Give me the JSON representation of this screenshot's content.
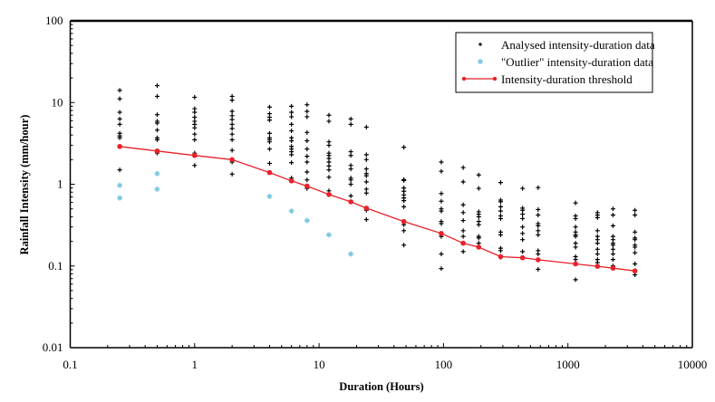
{
  "chart_data": {
    "type": "scatter",
    "title": "",
    "xlabel": "Duration (Hours)",
    "ylabel": "Rainfall Intensity (mm/hour)",
    "xscale": "log",
    "yscale": "log",
    "xlim": [
      0.1,
      10000
    ],
    "ylim": [
      0.01,
      100
    ],
    "x_ticks": [
      "0.1",
      "1",
      "10",
      "100",
      "1000",
      "10000"
    ],
    "y_ticks": [
      "0.01",
      "0.1",
      "1",
      "10",
      "100"
    ],
    "grid": false,
    "legend_position": "top-right",
    "series": [
      {
        "name": "Analysed intensity-duration data",
        "marker": "plus",
        "color": "#000000",
        "groups": [
          {
            "x": 0.25,
            "y": [
              14.1,
              11.1,
              7.6,
              6.3,
              5.4,
              4.2,
              3.9,
              3.7,
              1.5
            ]
          },
          {
            "x": 0.5,
            "y": [
              16.1,
              11.9,
              7.1,
              5.9,
              5.6,
              4.6,
              3.7,
              3.5,
              2.4
            ]
          },
          {
            "x": 1,
            "y": [
              11.6,
              8.4,
              7.6,
              6.6,
              5.9,
              5.4,
              4.9,
              4.1,
              3.5,
              2.4,
              1.7
            ]
          },
          {
            "x": 2,
            "y": [
              11.9,
              10.7,
              7.8,
              6.9,
              6.2,
              5.4,
              4.8,
              4.1,
              3.5,
              2.6,
              1.87,
              1.33
            ]
          },
          {
            "x": 4,
            "y": [
              8.8,
              7.3,
              6.6,
              6.1,
              4.2,
              3.7,
              3.5,
              3.3,
              2.7,
              1.8
            ]
          },
          {
            "x": 6,
            "y": [
              9.0,
              7.6,
              6.7,
              5.4,
              4.5,
              3.7,
              3.4,
              2.9,
              2.7,
              2.5,
              2.3,
              1.84,
              1.19
            ]
          },
          {
            "x": 8,
            "y": [
              9.4,
              7.8,
              6.7,
              4.3,
              3.4,
              2.7,
              2.2,
              1.87,
              1.41,
              1.13,
              0.89
            ]
          },
          {
            "x": 12,
            "y": [
              7.0,
              5.9,
              3.3,
              3.0,
              2.4,
              2.25,
              2.07,
              1.87,
              1.67,
              1.5,
              1.22,
              0.83
            ]
          },
          {
            "x": 18,
            "y": [
              6.3,
              5.4,
              2.5,
              2.25,
              1.7,
              1.54,
              1.19,
              1.13,
              1.0,
              0.72
            ]
          },
          {
            "x": 24,
            "y": [
              5.0,
              2.3,
              2.0,
              1.54,
              1.35,
              1.27,
              1.07,
              0.87,
              0.78,
              0.48,
              0.37
            ]
          },
          {
            "x": 48,
            "y": [
              2.84,
              1.14,
              1.11,
              0.9,
              0.82,
              0.74,
              0.68,
              0.63,
              0.53,
              0.32,
              0.27,
              0.18
            ]
          },
          {
            "x": 96,
            "y": [
              1.87,
              1.44,
              0.77,
              0.62,
              0.5,
              0.47,
              0.35,
              0.33,
              0.23,
              0.14,
              0.093
            ]
          },
          {
            "x": 144,
            "y": [
              1.6,
              1.07,
              0.56,
              0.45,
              0.36,
              0.27,
              0.23,
              0.19,
              0.15
            ]
          },
          {
            "x": 192,
            "y": [
              1.3,
              0.89,
              0.46,
              0.43,
              0.4,
              0.35,
              0.32,
              0.23,
              0.22,
              0.19
            ]
          },
          {
            "x": 288,
            "y": [
              1.05,
              0.64,
              0.61,
              0.53,
              0.47,
              0.41,
              0.38,
              0.26,
              0.24,
              0.165,
              0.154,
              0.128
            ]
          },
          {
            "x": 432,
            "y": [
              0.89,
              0.51,
              0.48,
              0.43,
              0.38,
              0.3,
              0.25,
              0.21,
              0.15
            ]
          },
          {
            "x": 576,
            "y": [
              0.91,
              0.49,
              0.42,
              0.33,
              0.31,
              0.27,
              0.24,
              0.154,
              0.14,
              0.091
            ]
          },
          {
            "x": 1152,
            "y": [
              0.59,
              0.41,
              0.38,
              0.3,
              0.26,
              0.24,
              0.23,
              0.19,
              0.17,
              0.13,
              0.12,
              0.068
            ]
          },
          {
            "x": 1728,
            "y": [
              0.45,
              0.42,
              0.39,
              0.27,
              0.23,
              0.21,
              0.19,
              0.16,
              0.14,
              0.12,
              0.11
            ]
          },
          {
            "x": 2304,
            "y": [
              0.5,
              0.42,
              0.31,
              0.23,
              0.21,
              0.19,
              0.18,
              0.16,
              0.14,
              0.12,
              0.1
            ]
          },
          {
            "x": 3456,
            "y": [
              0.48,
              0.42,
              0.26,
              0.22,
              0.21,
              0.18,
              0.17,
              0.145,
              0.106,
              0.078
            ]
          }
        ]
      },
      {
        "name": "\"Outlier\" intensity-duration data",
        "marker": "star",
        "color": "#7ec8e3",
        "x": [
          0.25,
          0.25,
          0.5,
          0.5,
          4,
          6,
          8,
          12,
          18
        ],
        "y": [
          0.97,
          0.68,
          1.35,
          0.87,
          0.71,
          0.47,
          0.36,
          0.24,
          0.14
        ]
      },
      {
        "name": "Intensity-duration threshold",
        "marker": "circle-line",
        "color": "#e8202a",
        "x": [
          0.25,
          0.5,
          1,
          2,
          4,
          6,
          8,
          12,
          18,
          24,
          48,
          96,
          144,
          192,
          288,
          432,
          576,
          1152,
          1728,
          2304,
          3456
        ],
        "y": [
          2.9,
          2.55,
          2.25,
          2.0,
          1.39,
          1.1,
          0.95,
          0.75,
          0.61,
          0.51,
          0.35,
          0.25,
          0.19,
          0.17,
          0.13,
          0.126,
          0.119,
          0.106,
          0.099,
          0.094,
          0.087
        ]
      }
    ]
  }
}
